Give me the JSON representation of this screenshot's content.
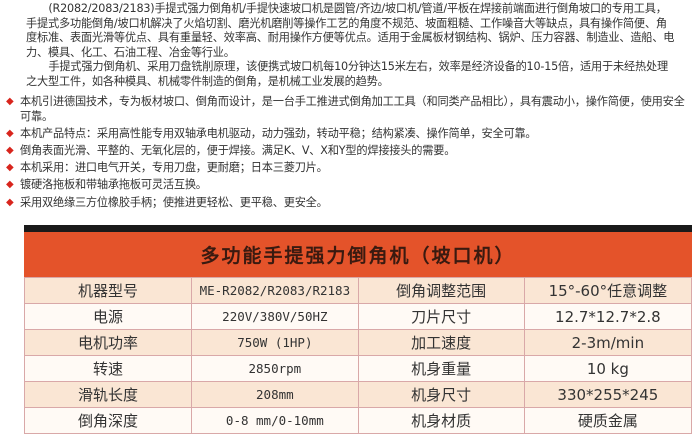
{
  "intro": [
    "(R2082/2083/2183)手提式强力倒角机/手提快速坡口机是圆管/齐边/坡口机/管道/平板在焊接前端面进行倒角坡口的专用工具，手提式多功能倒角/坡口机解决了火焰切割、磨光机磨削等操作工艺的角度不规范、坡面粗糙、工作噪音大等缺点，具有操作简便、角度标准、表面光滑等优点、具有重量轻、效率高、耐用操作方便等优点。适用于金属板材钢结构、锅炉、压力容器、制造业、造船、电力、模具、化工、石油工程、冶金等行业。",
    "手提式强力倒角机、采用刀盘铣削原理，该便携式坡口机每10分钟达15米左右，效率是经济设备的10-15倍，适用于未经热处理之大型工件，如各种模具、机械零件制造的倒角，是机械工业发展的趋势。"
  ],
  "bullets": [
    "本机引进德国技术，专为板材坡口、倒角而设计，是一台手工推进式倒角加工工具（和同类产品相比），具有震动小，操作简便，使用安全可靠。",
    "本机产品特点：采用高性能专用双轴承电机驱动，动力强劲，转动平稳；结构紧凑、操作简单，安全可靠。",
    "倒角表面光滑、平整的、无氧化层的，便于焊接。满足K、V、X和Y型的焊接接头的需要。",
    "本机采用：进口电气开关，专用刀盘，更耐磨；日本三菱刀片。",
    "镀硬洛拖板和带轴承拖板可灵活互换。",
    "采用双绝缘三方位橡胶手柄；使推进更轻松、更平稳、更安全。"
  ],
  "table": {
    "title": "多功能手提强力倒角机（坡口机）",
    "header_color": "#e4532a",
    "rows": [
      [
        "机器型号",
        "ME-R2082/R2083/R2183",
        "倒角调整范围",
        "15°-60°任意调整"
      ],
      [
        "电源",
        "220V/380V/50HZ",
        "刀片尺寸",
        "12.7*12.7*2.8"
      ],
      [
        "电机功率",
        "750W (1HP)",
        "加工速度",
        "2-3m/min"
      ],
      [
        "转速",
        "2850rpm",
        "机身重量",
        "10 kg"
      ],
      [
        "滑轨长度",
        "208mm",
        "机身尺寸",
        "330*255*245"
      ],
      [
        "倒角深度",
        "0-8 mm/0-10mm",
        "机身材质",
        "硬质金属"
      ]
    ]
  }
}
